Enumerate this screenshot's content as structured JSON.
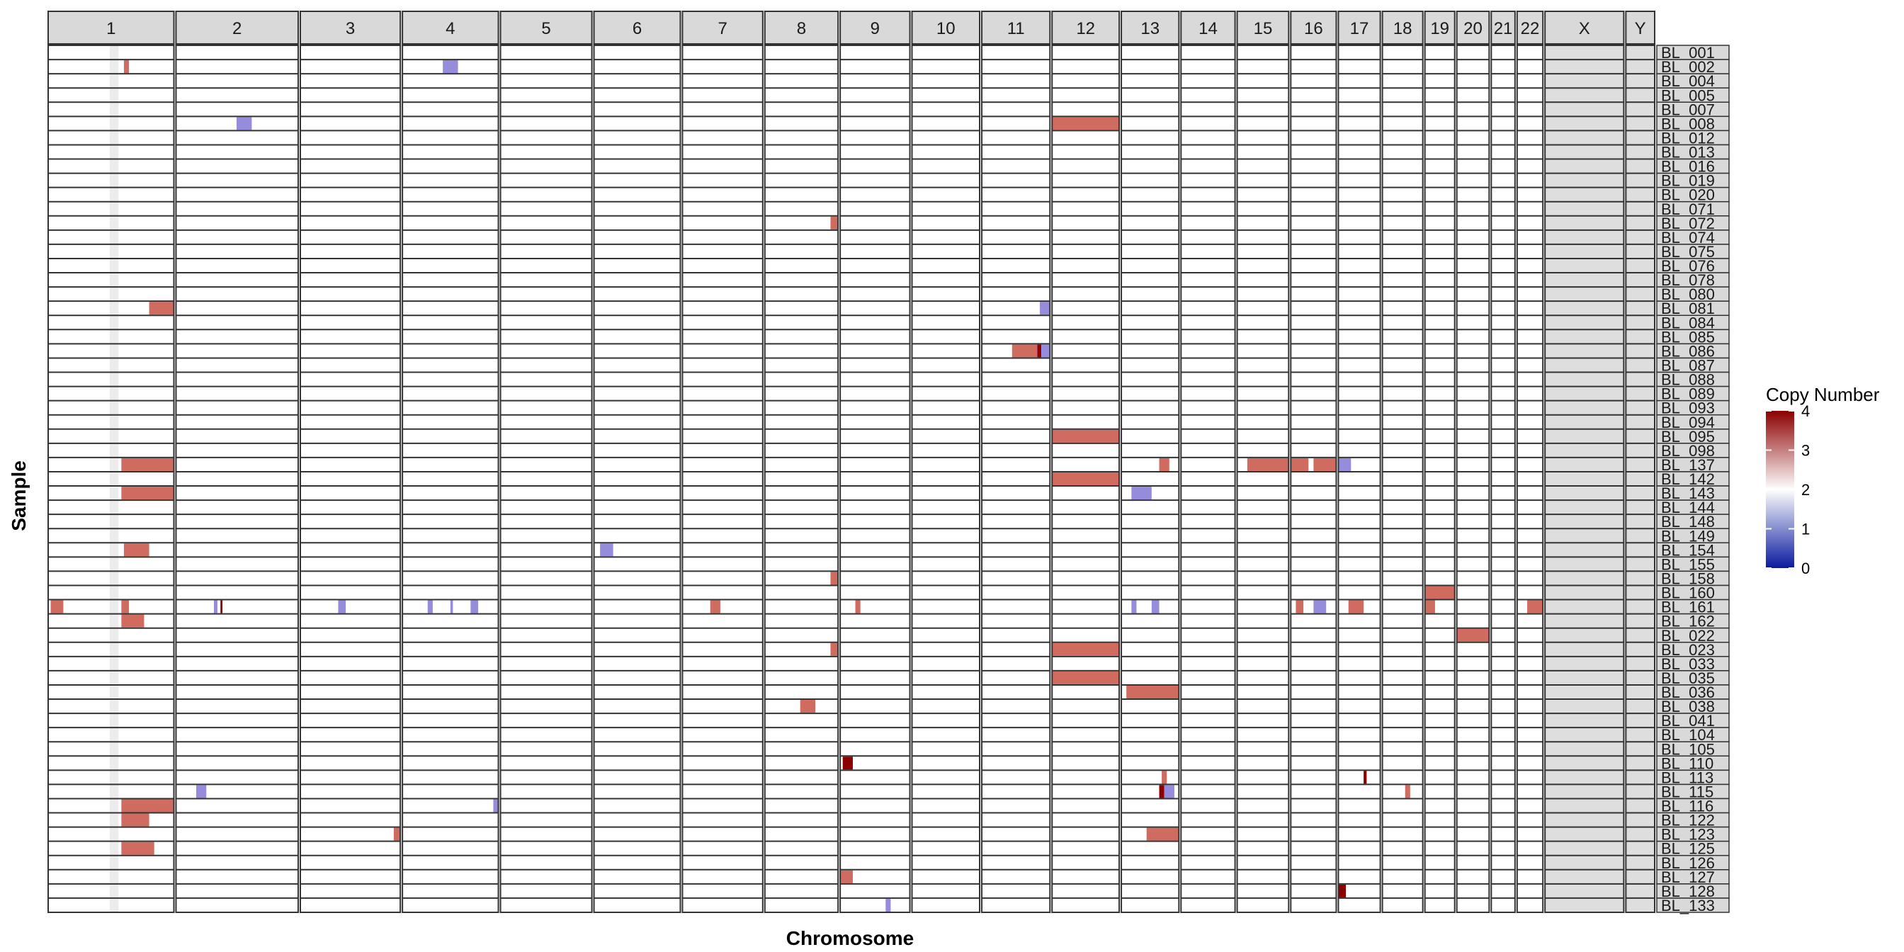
{
  "chart_data": {
    "type": "heatmap",
    "title": "",
    "xlabel": "Chromosome",
    "ylabel": "Sample",
    "legend": {
      "title": "Copy Number",
      "ticks": [
        "4",
        "3",
        "2",
        "1",
        "0"
      ],
      "tick_values": [
        4,
        3,
        2,
        1,
        0
      ],
      "range": [
        0,
        4
      ],
      "colors": {
        "low": "#0a1a9e",
        "mid": "#ffffff",
        "high": "#8c0000"
      },
      "placement": "right"
    },
    "chromosomes": [
      "1",
      "2",
      "3",
      "4",
      "5",
      "6",
      "7",
      "8",
      "9",
      "10",
      "11",
      "12",
      "13",
      "14",
      "15",
      "16",
      "17",
      "18",
      "19",
      "20",
      "21",
      "22",
      "X",
      "Y"
    ],
    "chromosome_length_mb": [
      249,
      242,
      198,
      190,
      181,
      171,
      159,
      145,
      138,
      134,
      135,
      133,
      114,
      107,
      102,
      90,
      83,
      80,
      59,
      64,
      47,
      51,
      156,
      57
    ],
    "samples": [
      "BL_001",
      "BL_002",
      "BL_004",
      "BL_005",
      "BL_007",
      "BL_008",
      "BL_012",
      "BL_013",
      "BL_016",
      "BL_019",
      "BL_020",
      "BL_071",
      "BL_072",
      "BL_074",
      "BL_075",
      "BL_076",
      "BL_078",
      "BL_080",
      "BL_081",
      "BL_084",
      "BL_085",
      "BL_086",
      "BL_087",
      "BL_088",
      "BL_089",
      "BL_093",
      "BL_094",
      "BL_095",
      "BL_098",
      "BL_137",
      "BL_142",
      "BL_143",
      "BL_144",
      "BL_148",
      "BL_149",
      "BL_154",
      "BL_155",
      "BL_158",
      "BL_160",
      "BL_161",
      "BL_162",
      "BL_022",
      "BL_023",
      "BL_033",
      "BL_035",
      "BL_036",
      "BL_038",
      "BL_041",
      "BL_104",
      "BL_105",
      "BL_110",
      "BL_113",
      "BL_115",
      "BL_116",
      "BL_122",
      "BL_123",
      "BL_125",
      "BL_126",
      "BL_127",
      "BL_128",
      "BL_133"
    ],
    "background_cn": 2,
    "segments": [
      {
        "sample": "BL_002",
        "chr": "1",
        "start": 150,
        "end": 160,
        "cn": 3
      },
      {
        "sample": "BL_002",
        "chr": "4",
        "start": 80,
        "end": 110,
        "cn": 1
      },
      {
        "sample": "BL_008",
        "chr": "2",
        "start": 120,
        "end": 150,
        "cn": 1
      },
      {
        "sample": "BL_008",
        "chr": "12",
        "start": 0,
        "end": 133,
        "cn": 3
      },
      {
        "sample": "BL_072",
        "chr": "8",
        "start": 130,
        "end": 145,
        "cn": 3
      },
      {
        "sample": "BL_081",
        "chr": "1",
        "start": 200,
        "end": 249,
        "cn": 3
      },
      {
        "sample": "BL_081",
        "chr": "11",
        "start": 115,
        "end": 135,
        "cn": 1
      },
      {
        "sample": "BL_086",
        "chr": "11",
        "start": 60,
        "end": 110,
        "cn": 3
      },
      {
        "sample": "BL_086",
        "chr": "11",
        "start": 110,
        "end": 118,
        "cn": 4
      },
      {
        "sample": "BL_086",
        "chr": "11",
        "start": 118,
        "end": 135,
        "cn": 1
      },
      {
        "sample": "BL_095",
        "chr": "12",
        "start": 0,
        "end": 133,
        "cn": 3
      },
      {
        "sample": "BL_137",
        "chr": "1",
        "start": 145,
        "end": 249,
        "cn": 3
      },
      {
        "sample": "BL_137",
        "chr": "13",
        "start": 75,
        "end": 95,
        "cn": 3
      },
      {
        "sample": "BL_137",
        "chr": "15",
        "start": 20,
        "end": 102,
        "cn": 3
      },
      {
        "sample": "BL_137",
        "chr": "16",
        "start": 0,
        "end": 35,
        "cn": 3
      },
      {
        "sample": "BL_137",
        "chr": "16",
        "start": 45,
        "end": 90,
        "cn": 3
      },
      {
        "sample": "BL_137",
        "chr": "17",
        "start": 0,
        "end": 25,
        "cn": 1
      },
      {
        "sample": "BL_142",
        "chr": "12",
        "start": 0,
        "end": 133,
        "cn": 3
      },
      {
        "sample": "BL_143",
        "chr": "1",
        "start": 145,
        "end": 249,
        "cn": 3
      },
      {
        "sample": "BL_143",
        "chr": "13",
        "start": 20,
        "end": 60,
        "cn": 1
      },
      {
        "sample": "BL_154",
        "chr": "1",
        "start": 150,
        "end": 200,
        "cn": 3
      },
      {
        "sample": "BL_154",
        "chr": "6",
        "start": 12,
        "end": 38,
        "cn": 1
      },
      {
        "sample": "BL_158",
        "chr": "8",
        "start": 130,
        "end": 145,
        "cn": 3
      },
      {
        "sample": "BL_160",
        "chr": "19",
        "start": 0,
        "end": 59,
        "cn": 3
      },
      {
        "sample": "BL_161",
        "chr": "1",
        "start": 5,
        "end": 30,
        "cn": 3
      },
      {
        "sample": "BL_161",
        "chr": "1",
        "start": 145,
        "end": 160,
        "cn": 3
      },
      {
        "sample": "BL_161",
        "chr": "2",
        "start": 75,
        "end": 82,
        "cn": 1
      },
      {
        "sample": "BL_161",
        "chr": "2",
        "start": 88,
        "end": 92,
        "cn": 4
      },
      {
        "sample": "BL_161",
        "chr": "3",
        "start": 75,
        "end": 90,
        "cn": 1
      },
      {
        "sample": "BL_161",
        "chr": "4",
        "start": 50,
        "end": 60,
        "cn": 1
      },
      {
        "sample": "BL_161",
        "chr": "4",
        "start": 95,
        "end": 100,
        "cn": 1
      },
      {
        "sample": "BL_161",
        "chr": "4",
        "start": 135,
        "end": 150,
        "cn": 1
      },
      {
        "sample": "BL_161",
        "chr": "7",
        "start": 55,
        "end": 75,
        "cn": 3
      },
      {
        "sample": "BL_161",
        "chr": "9",
        "start": 30,
        "end": 40,
        "cn": 3
      },
      {
        "sample": "BL_161",
        "chr": "13",
        "start": 20,
        "end": 30,
        "cn": 1
      },
      {
        "sample": "BL_161",
        "chr": "13",
        "start": 60,
        "end": 75,
        "cn": 1
      },
      {
        "sample": "BL_161",
        "chr": "16",
        "start": 10,
        "end": 25,
        "cn": 3
      },
      {
        "sample": "BL_161",
        "chr": "16",
        "start": 45,
        "end": 70,
        "cn": 1
      },
      {
        "sample": "BL_161",
        "chr": "17",
        "start": 20,
        "end": 50,
        "cn": 3
      },
      {
        "sample": "BL_161",
        "chr": "19",
        "start": 0,
        "end": 20,
        "cn": 3
      },
      {
        "sample": "BL_161",
        "chr": "22",
        "start": 20,
        "end": 51,
        "cn": 3
      },
      {
        "sample": "BL_162",
        "chr": "1",
        "start": 145,
        "end": 190,
        "cn": 3
      },
      {
        "sample": "BL_022",
        "chr": "20",
        "start": 0,
        "end": 64,
        "cn": 3
      },
      {
        "sample": "BL_023",
        "chr": "8",
        "start": 130,
        "end": 145,
        "cn": 3
      },
      {
        "sample": "BL_023",
        "chr": "12",
        "start": 0,
        "end": 133,
        "cn": 3
      },
      {
        "sample": "BL_035",
        "chr": "12",
        "start": 0,
        "end": 133,
        "cn": 3
      },
      {
        "sample": "BL_036",
        "chr": "13",
        "start": 10,
        "end": 114,
        "cn": 3
      },
      {
        "sample": "BL_038",
        "chr": "8",
        "start": 70,
        "end": 100,
        "cn": 3
      },
      {
        "sample": "BL_110",
        "chr": "9",
        "start": 5,
        "end": 25,
        "cn": 4
      },
      {
        "sample": "BL_113",
        "chr": "13",
        "start": 80,
        "end": 90,
        "cn": 3
      },
      {
        "sample": "BL_113",
        "chr": "17",
        "start": 50,
        "end": 56,
        "cn": 4
      },
      {
        "sample": "BL_115",
        "chr": "2",
        "start": 40,
        "end": 60,
        "cn": 1
      },
      {
        "sample": "BL_115",
        "chr": "13",
        "start": 75,
        "end": 85,
        "cn": 4
      },
      {
        "sample": "BL_115",
        "chr": "13",
        "start": 85,
        "end": 105,
        "cn": 1
      },
      {
        "sample": "BL_115",
        "chr": "18",
        "start": 45,
        "end": 55,
        "cn": 3
      },
      {
        "sample": "BL_116",
        "chr": "1",
        "start": 145,
        "end": 249,
        "cn": 3
      },
      {
        "sample": "BL_116",
        "chr": "4",
        "start": 180,
        "end": 190,
        "cn": 1
      },
      {
        "sample": "BL_122",
        "chr": "1",
        "start": 145,
        "end": 200,
        "cn": 3
      },
      {
        "sample": "BL_123",
        "chr": "3",
        "start": 185,
        "end": 198,
        "cn": 3
      },
      {
        "sample": "BL_123",
        "chr": "13",
        "start": 50,
        "end": 114,
        "cn": 3
      },
      {
        "sample": "BL_125",
        "chr": "1",
        "start": 145,
        "end": 210,
        "cn": 3
      },
      {
        "sample": "BL_127",
        "chr": "9",
        "start": 0,
        "end": 25,
        "cn": 3
      },
      {
        "sample": "BL_128",
        "chr": "17",
        "start": 0,
        "end": 15,
        "cn": 4
      },
      {
        "sample": "BL_133",
        "chr": "9",
        "start": 90,
        "end": 100,
        "cn": 1
      }
    ]
  }
}
